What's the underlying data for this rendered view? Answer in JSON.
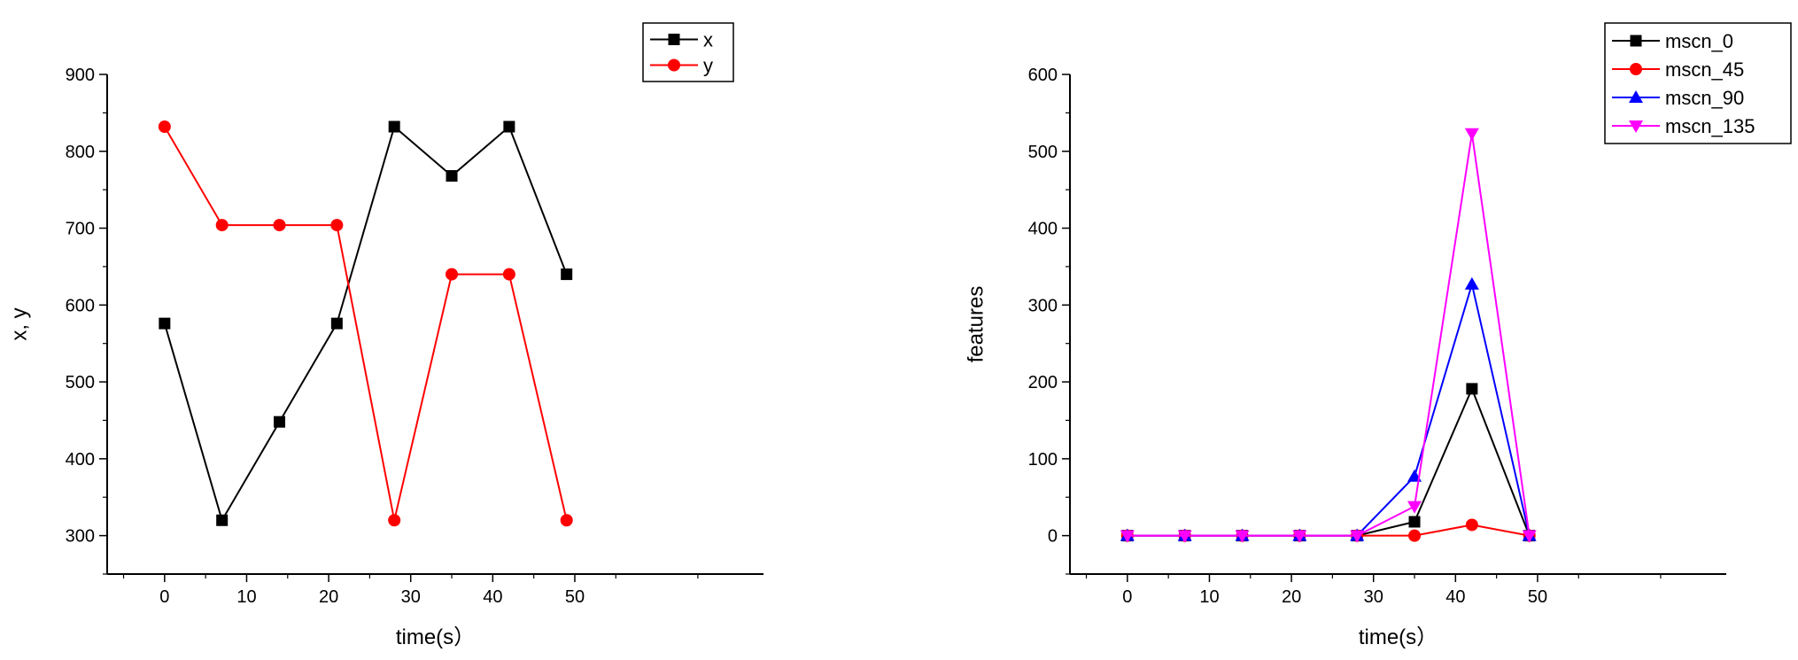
{
  "chart_data": [
    {
      "type": "line",
      "title": "",
      "xlabel": "time(s）",
      "ylabel": "x, y",
      "xlim": [
        -7,
        73
      ],
      "ylim": [
        250,
        900
      ],
      "xticks": [
        0,
        10,
        20,
        30,
        40,
        50
      ],
      "xtick_labels": [
        "0",
        "10",
        "20",
        "30",
        "40",
        "50"
      ],
      "yticks": [
        300,
        400,
        500,
        600,
        700,
        800,
        900
      ],
      "ytick_labels": [
        "300",
        "400",
        "500",
        "600",
        "700",
        "800",
        "900"
      ],
      "grid": false,
      "legend_position": "top-right",
      "x": [
        0,
        7,
        14,
        21,
        28,
        35,
        42,
        49
      ],
      "series": [
        {
          "name": "x",
          "color": "#000000",
          "marker": "square",
          "values": [
            576,
            320,
            448,
            576,
            832,
            768,
            832,
            640
          ]
        },
        {
          "name": "y",
          "color": "#ff0000",
          "marker": "circle",
          "values": [
            832,
            704,
            704,
            704,
            320,
            640,
            640,
            320
          ]
        }
      ]
    },
    {
      "type": "line",
      "title": "",
      "xlabel": "time(s）",
      "ylabel": "features",
      "xlim": [
        -7,
        73
      ],
      "ylim": [
        -50,
        600
      ],
      "xticks": [
        0,
        10,
        20,
        30,
        40,
        50
      ],
      "xtick_labels": [
        "0",
        "10",
        "20",
        "30",
        "40",
        "50"
      ],
      "yticks": [
        0,
        100,
        200,
        300,
        400,
        500,
        600
      ],
      "ytick_labels": [
        "0",
        "100",
        "200",
        "300",
        "400",
        "500",
        "600"
      ],
      "grid": false,
      "legend_position": "top-right",
      "x": [
        0,
        7,
        14,
        21,
        28,
        35,
        42,
        49
      ],
      "series": [
        {
          "name": "mscn_0",
          "color": "#000000",
          "marker": "square",
          "values": [
            0,
            0,
            0,
            0,
            0,
            18,
            191,
            0
          ]
        },
        {
          "name": "mscn_45",
          "color": "#ff0000",
          "marker": "circle",
          "values": [
            0,
            0,
            0,
            0,
            0,
            0,
            14,
            0
          ]
        },
        {
          "name": "mscn_90",
          "color": "#0000ff",
          "marker": "triangle-up",
          "values": [
            0,
            0,
            0,
            0,
            0,
            77,
            327,
            0
          ]
        },
        {
          "name": "mscn_135",
          "color": "#ff00ff",
          "marker": "triangle-down",
          "values": [
            0,
            0,
            0,
            0,
            0,
            38,
            523,
            0
          ]
        }
      ]
    }
  ]
}
